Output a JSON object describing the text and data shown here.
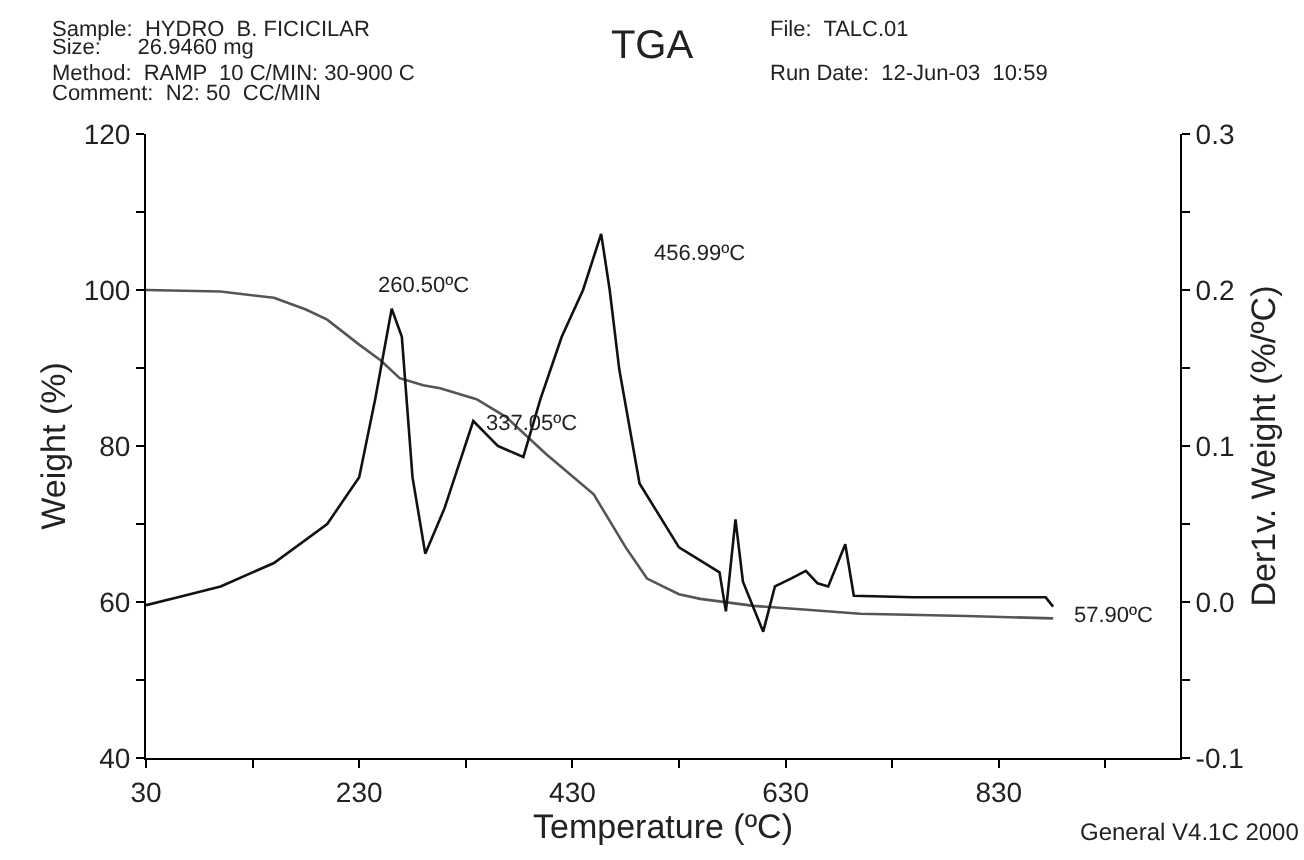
{
  "chart_data": {
    "type": "line",
    "title": "TGA",
    "xlabel": "Temperature (ºC)",
    "ylabel": "Weight (%)",
    "y2label": "Der1v. Weight (%/ºC)",
    "xlim": [
      30,
      1000
    ],
    "xticks": [
      30,
      {
        "value": 130,
        "label": null
      },
      230,
      {
        "value": 330,
        "label": null
      },
      430,
      {
        "value": 530,
        "label": null
      },
      630,
      {
        "value": 730,
        "label": null
      },
      830,
      {
        "value": 930,
        "label": null
      }
    ],
    "ylim": [
      40,
      120
    ],
    "yticks": [
      40,
      {
        "value": 50,
        "label": null
      },
      60,
      {
        "value": 70,
        "label": null
      },
      80,
      {
        "value": 90,
        "label": null
      },
      100,
      {
        "value": 110,
        "label": null
      },
      120
    ],
    "y2lim": [
      -0.1,
      0.3
    ],
    "y2ticks": [
      -0.1,
      {
        "value": -0.05,
        "label": null
      },
      {
        "value": 0,
        "label": "0.0"
      },
      {
        "value": 0.05,
        "label": null
      },
      0.1,
      {
        "value": 0.15,
        "label": null
      },
      0.2,
      {
        "value": 0.25,
        "label": null
      },
      0.3
    ],
    "marker": "none",
    "line_style": "solid",
    "series": [
      {
        "color": "#555555",
        "x": [
          30,
          100,
          150,
          180,
          200,
          230,
          250,
          268,
          290,
          306,
          340,
          368,
          405,
          450,
          480,
          500,
          530,
          550,
          600,
          650,
          700,
          800,
          881
        ],
        "values": [
          100,
          99.8,
          99,
          97.5,
          96.2,
          93,
          91,
          88.7,
          87.8,
          87.4,
          86,
          83.7,
          79,
          73.8,
          67,
          63,
          61,
          60.4,
          59.5,
          59,
          58.5,
          58.2,
          57.9
        ]
      },
      {
        "color": "#111111",
        "axis": "y2",
        "x": [
          30,
          60,
          100,
          150,
          200,
          230,
          245,
          260.5,
          270,
          280,
          292,
          310,
          337,
          360,
          384,
          400,
          420,
          440,
          456.99,
          465,
          474,
          493,
          530,
          568,
          574,
          583,
          590,
          609,
          620,
          635,
          649,
          660,
          670,
          686,
          694,
          750,
          874,
          881
        ],
        "values": [
          -0.002,
          0.003,
          0.01,
          0.025,
          0.05,
          0.08,
          0.13,
          0.188,
          0.17,
          0.08,
          0.031,
          0.06,
          0.116,
          0.1,
          0.093,
          0.13,
          0.17,
          0.2,
          0.236,
          0.2,
          0.149,
          0.076,
          0.035,
          0.019,
          -0.006,
          0.053,
          0.013,
          -0.019,
          0.01,
          0.015,
          0.02,
          0.012,
          0.01,
          0.037,
          0.004,
          0.003,
          0.003,
          -0.003
        ]
      }
    ],
    "annotations": [
      "Sample:  HYDRO  B. FICICILAR",
      "Size:      26.9460 mg",
      "Method:  RAMP  10 C/MIN: 30-900 C",
      "Comment:  N2: 50  CC/MIN",
      "File:  TALC.01",
      "Run Date:  12-Jun-03  10:59",
      "General V4.1C 2000",
      "260.50ºC",
      "337.05ºC",
      "456.99ºC",
      "57.90ºC"
    ]
  }
}
